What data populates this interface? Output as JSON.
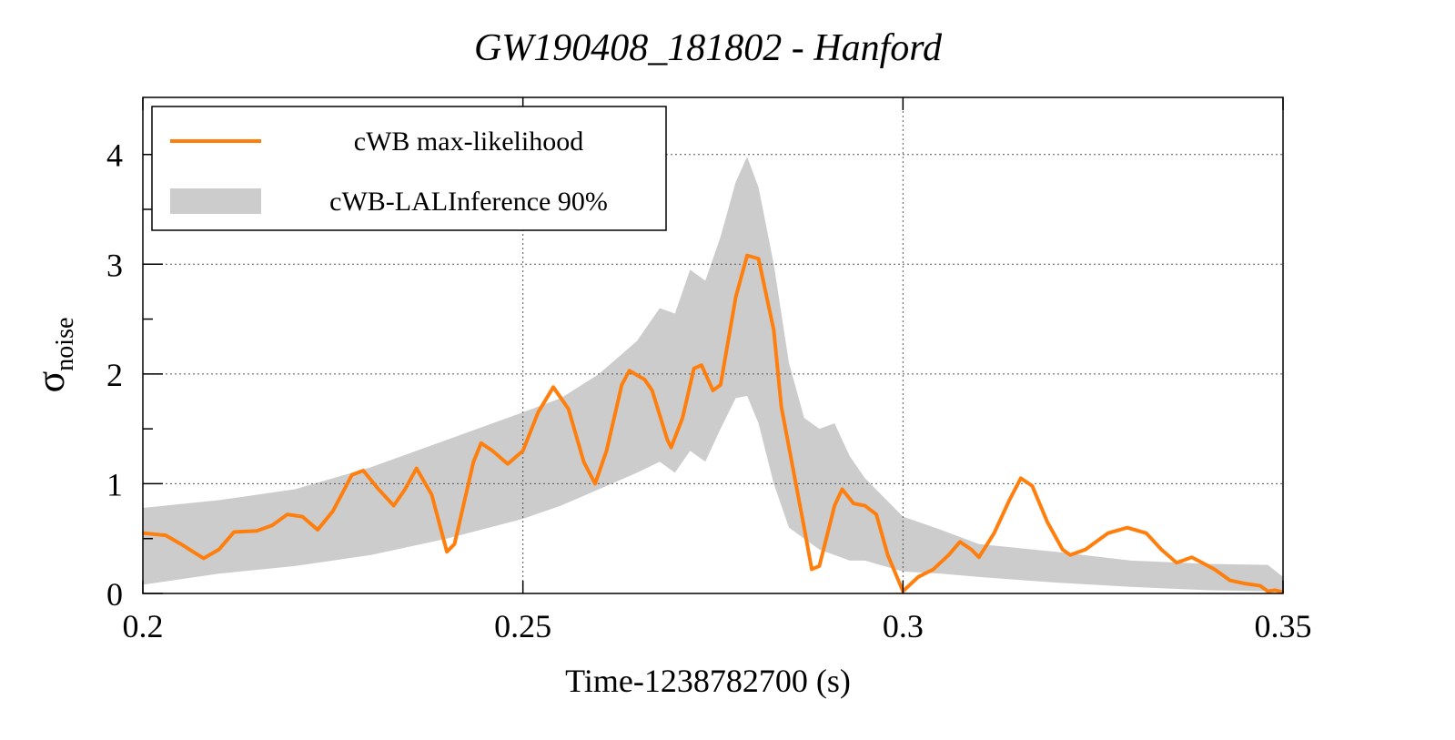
{
  "chart_data": {
    "type": "line",
    "title": "GW190408_181802 - Hanford",
    "x_label": "Time-1238782700 (s)",
    "y_label": {
      "symbol": "σ",
      "subscript": "noise"
    },
    "xlim": [
      0.2,
      0.35
    ],
    "xticks": [
      0.2,
      0.25,
      0.3,
      0.35
    ],
    "ylim": [
      0,
      4.52
    ],
    "yticks": [
      0,
      1,
      2,
      3,
      4
    ],
    "y_minor_ticks": [
      0.5,
      1.5,
      2.5,
      3.5
    ],
    "grid": true,
    "legend": "top-left",
    "series": [
      {
        "name": "cWB max-likelihood",
        "color": "#ff7f0e",
        "x": [
          0.2,
          0.203,
          0.205,
          0.208,
          0.21,
          0.212,
          0.215,
          0.217,
          0.219,
          0.221,
          0.223,
          0.225,
          0.2275,
          0.229,
          0.231,
          0.233,
          0.2345,
          0.236,
          0.238,
          0.24,
          0.241,
          0.2435,
          0.2445,
          0.246,
          0.248,
          0.25,
          0.252,
          0.254,
          0.256,
          0.258,
          0.2595,
          0.261,
          0.263,
          0.264,
          0.266,
          0.267,
          0.269,
          0.2695,
          0.271,
          0.2725,
          0.2735,
          0.275,
          0.276,
          0.278,
          0.2795,
          0.281,
          0.283,
          0.284,
          0.2855,
          0.287,
          0.288,
          0.289,
          0.291,
          0.292,
          0.2935,
          0.295,
          0.2965,
          0.298,
          0.3,
          0.302,
          0.304,
          0.306,
          0.3075,
          0.309,
          0.31,
          0.312,
          0.314,
          0.3155,
          0.317,
          0.319,
          0.321,
          0.322,
          0.324,
          0.327,
          0.3295,
          0.332,
          0.334,
          0.336,
          0.338,
          0.341,
          0.343,
          0.345,
          0.347,
          0.348,
          0.349,
          0.35
        ],
        "values": [
          0.55,
          0.53,
          0.45,
          0.32,
          0.4,
          0.56,
          0.57,
          0.62,
          0.72,
          0.7,
          0.58,
          0.75,
          1.08,
          1.12,
          0.95,
          0.8,
          0.95,
          1.14,
          0.9,
          0.38,
          0.45,
          1.2,
          1.37,
          1.3,
          1.18,
          1.3,
          1.65,
          1.88,
          1.68,
          1.2,
          1.0,
          1.3,
          1.9,
          2.03,
          1.95,
          1.85,
          1.4,
          1.33,
          1.6,
          2.05,
          2.08,
          1.85,
          1.9,
          2.7,
          3.08,
          3.05,
          2.4,
          1.7,
          1.15,
          0.6,
          0.22,
          0.25,
          0.8,
          0.95,
          0.82,
          0.8,
          0.72,
          0.35,
          0.02,
          0.15,
          0.22,
          0.35,
          0.47,
          0.4,
          0.33,
          0.55,
          0.85,
          1.05,
          0.98,
          0.65,
          0.4,
          0.35,
          0.4,
          0.55,
          0.6,
          0.55,
          0.4,
          0.28,
          0.33,
          0.22,
          0.12,
          0.09,
          0.07,
          0.02,
          0.03,
          0.01
        ]
      },
      {
        "name": "cWB-LALInference 90%",
        "color": "#cccccc",
        "kind": "band",
        "x": [
          0.2,
          0.21,
          0.22,
          0.23,
          0.24,
          0.25,
          0.255,
          0.26,
          0.265,
          0.268,
          0.27,
          0.272,
          0.274,
          0.276,
          0.278,
          0.2795,
          0.281,
          0.283,
          0.285,
          0.287,
          0.289,
          0.291,
          0.293,
          0.295,
          0.3,
          0.305,
          0.31,
          0.32,
          0.33,
          0.34,
          0.348,
          0.35
        ],
        "lower": [
          0.08,
          0.18,
          0.25,
          0.35,
          0.5,
          0.68,
          0.8,
          0.95,
          1.1,
          1.2,
          1.1,
          1.3,
          1.2,
          1.5,
          1.78,
          1.8,
          1.55,
          1.0,
          0.6,
          0.5,
          0.4,
          0.35,
          0.3,
          0.3,
          0.2,
          0.18,
          0.15,
          0.1,
          0.06,
          0.03,
          0.02,
          0.0
        ],
        "upper": [
          0.78,
          0.85,
          0.95,
          1.15,
          1.4,
          1.65,
          1.78,
          2.0,
          2.3,
          2.6,
          2.55,
          2.95,
          2.85,
          3.25,
          3.75,
          3.98,
          3.7,
          3.0,
          2.1,
          1.6,
          1.5,
          1.55,
          1.25,
          1.05,
          0.7,
          0.58,
          0.45,
          0.38,
          0.3,
          0.27,
          0.26,
          0.15
        ]
      }
    ]
  }
}
